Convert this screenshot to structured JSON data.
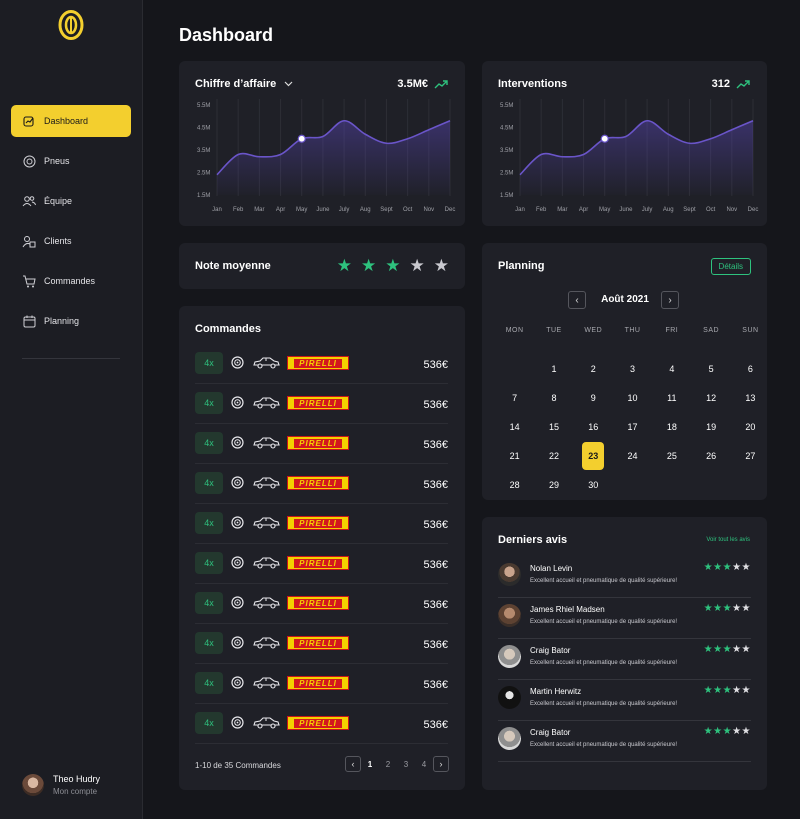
{
  "sidebar": {
    "items": [
      {
        "label": "Dashboard",
        "icon": "dashboard-icon",
        "active": true
      },
      {
        "label": "Pneus",
        "icon": "tire-icon"
      },
      {
        "label": "Équipe",
        "icon": "team-icon"
      },
      {
        "label": "Clients",
        "icon": "clients-icon"
      },
      {
        "label": "Commandes",
        "icon": "cart-icon"
      },
      {
        "label": "Planning",
        "icon": "calendar-icon"
      }
    ],
    "user": {
      "name": "Theo Hudry",
      "sub": "Mon compte"
    }
  },
  "header": {
    "title": "Dashboard"
  },
  "revenue": {
    "title": "Chiffre d’affaire",
    "value": "3.5M€",
    "chart_data": {
      "type": "area",
      "categories": [
        "Jan",
        "Feb",
        "Mar",
        "Apr",
        "May",
        "June",
        "July",
        "Aug",
        "Sept",
        "Oct",
        "Nov",
        "Dec"
      ],
      "yticks": [
        "5.5M",
        "4.5M",
        "3.5M",
        "2.5M",
        "1.5M"
      ],
      "ylim": [
        1.5,
        5.5
      ],
      "highlight_index": 4,
      "values": [
        2.4,
        3.3,
        3.2,
        3.3,
        4.0,
        4.1,
        4.8,
        4.2,
        3.8,
        4.0,
        4.4,
        4.8
      ]
    }
  },
  "interventions": {
    "title": "Interventions",
    "value": "312",
    "chart_data": {
      "type": "area",
      "categories": [
        "Jan",
        "Feb",
        "Mar",
        "Apr",
        "May",
        "June",
        "July",
        "Aug",
        "Sept",
        "Oct",
        "Nov",
        "Dec"
      ],
      "yticks": [
        "5.5M",
        "4.5M",
        "3.5M",
        "2.5M",
        "1.5M"
      ],
      "ylim": [
        1.5,
        5.5
      ],
      "highlight_index": 4,
      "values": [
        2.4,
        3.3,
        3.2,
        3.3,
        4.0,
        4.1,
        4.8,
        4.2,
        3.8,
        4.0,
        4.4,
        4.8
      ]
    }
  },
  "rating": {
    "title": "Note moyenne",
    "stars": 3,
    "max": 5
  },
  "orders": {
    "title": "Commandes",
    "brand": "PIRELLI",
    "rows": [
      {
        "qty": "4x",
        "price": "536€"
      },
      {
        "qty": "4x",
        "price": "536€"
      },
      {
        "qty": "4x",
        "price": "536€"
      },
      {
        "qty": "4x",
        "price": "536€"
      },
      {
        "qty": "4x",
        "price": "536€"
      },
      {
        "qty": "4x",
        "price": "536€"
      },
      {
        "qty": "4x",
        "price": "536€"
      },
      {
        "qty": "4x",
        "price": "536€"
      },
      {
        "qty": "4x",
        "price": "536€"
      },
      {
        "qty": "4x",
        "price": "536€"
      }
    ],
    "pager_text": "1-10 de 35 Commandes",
    "pages": [
      "1",
      "2",
      "3",
      "4"
    ],
    "current_page": "1"
  },
  "planning": {
    "title": "Planning",
    "details_label": "Détails",
    "month": "Août 2021",
    "weekdays": [
      "MON",
      "TUE",
      "WED",
      "THU",
      "FRI",
      "SAD",
      "SUN"
    ],
    "leading_blanks": 1,
    "days": 30,
    "selected_day": 23
  },
  "reviews": {
    "title": "Derniers avis",
    "see_all": "Voir tout les avis",
    "items": [
      {
        "name": "Nolan Levin",
        "text": "Excellent accueil et pneumatique de qualité supérieure!",
        "stars": 3
      },
      {
        "name": "James Rhiel Madsen",
        "text": "Excellent accueil et pneumatique de qualité supérieure!",
        "stars": 3
      },
      {
        "name": "Craig Bator",
        "text": "Excellent accueil et pneumatique de qualité supérieure!",
        "stars": 3
      },
      {
        "name": "Martin Herwitz",
        "text": "Excellent accueil et pneumatique de qualité supérieure!",
        "stars": 3
      },
      {
        "name": "Craig Bator",
        "text": "Excellent accueil et pneumatique de qualité supérieure!",
        "stars": 3
      }
    ]
  },
  "colors": {
    "accent": "#f3cf2e",
    "positive": "#2ec27e",
    "line": "#6a55c9"
  }
}
